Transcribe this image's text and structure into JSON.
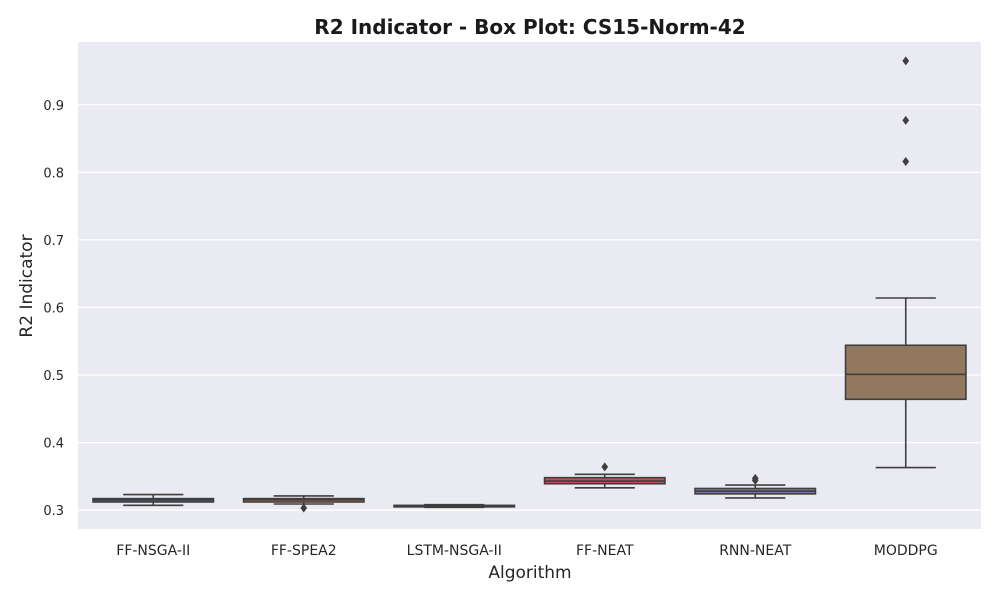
{
  "chart_data": {
    "type": "box",
    "title": "R2 Indicator - Box Plot: CS15-Norm-42",
    "xlabel": "Algorithm",
    "ylabel": "R2 Indicator",
    "ylim": [
      0.272,
      0.993
    ],
    "yticks": [
      "0.3",
      "0.4",
      "0.5",
      "0.6",
      "0.7",
      "0.8",
      "0.9"
    ],
    "grid": true,
    "categories": [
      "FF-NSGA-II",
      "FF-SPEA2",
      "LSTM-NSGA-II",
      "FF-NEAT",
      "RNN-NEAT",
      "MODDPG"
    ],
    "series": [
      {
        "category": "FF-NSGA-II",
        "color": "#4a6ab4",
        "whisker_low": 0.307,
        "q1": 0.312,
        "median": 0.315,
        "q3": 0.317,
        "whisker_high": 0.323,
        "outliers": []
      },
      {
        "category": "FF-SPEA2",
        "color": "#d9824b",
        "whisker_low": 0.309,
        "q1": 0.312,
        "median": 0.315,
        "q3": 0.317,
        "whisker_high": 0.321,
        "outliers": [
          0.303
        ]
      },
      {
        "category": "LSTM-NSGA-II",
        "color": "#55a868",
        "whisker_low": 0.304,
        "q1": 0.305,
        "median": 0.306,
        "q3": 0.307,
        "whisker_high": 0.308,
        "outliers": []
      },
      {
        "category": "FF-NEAT",
        "color": "#c44e52",
        "whisker_low": 0.333,
        "q1": 0.339,
        "median": 0.343,
        "q3": 0.348,
        "whisker_high": 0.353,
        "outliers": [
          0.364
        ]
      },
      {
        "category": "RNN-NEAT",
        "color": "#8172b2",
        "whisker_low": 0.318,
        "q1": 0.324,
        "median": 0.328,
        "q3": 0.332,
        "whisker_high": 0.337,
        "outliers": [
          0.344,
          0.347
        ]
      },
      {
        "category": "MODDPG",
        "color": "#937860",
        "whisker_low": 0.363,
        "q1": 0.464,
        "median": 0.501,
        "q3": 0.544,
        "whisker_high": 0.614,
        "outliers": [
          0.816,
          0.877,
          0.965
        ]
      }
    ]
  }
}
